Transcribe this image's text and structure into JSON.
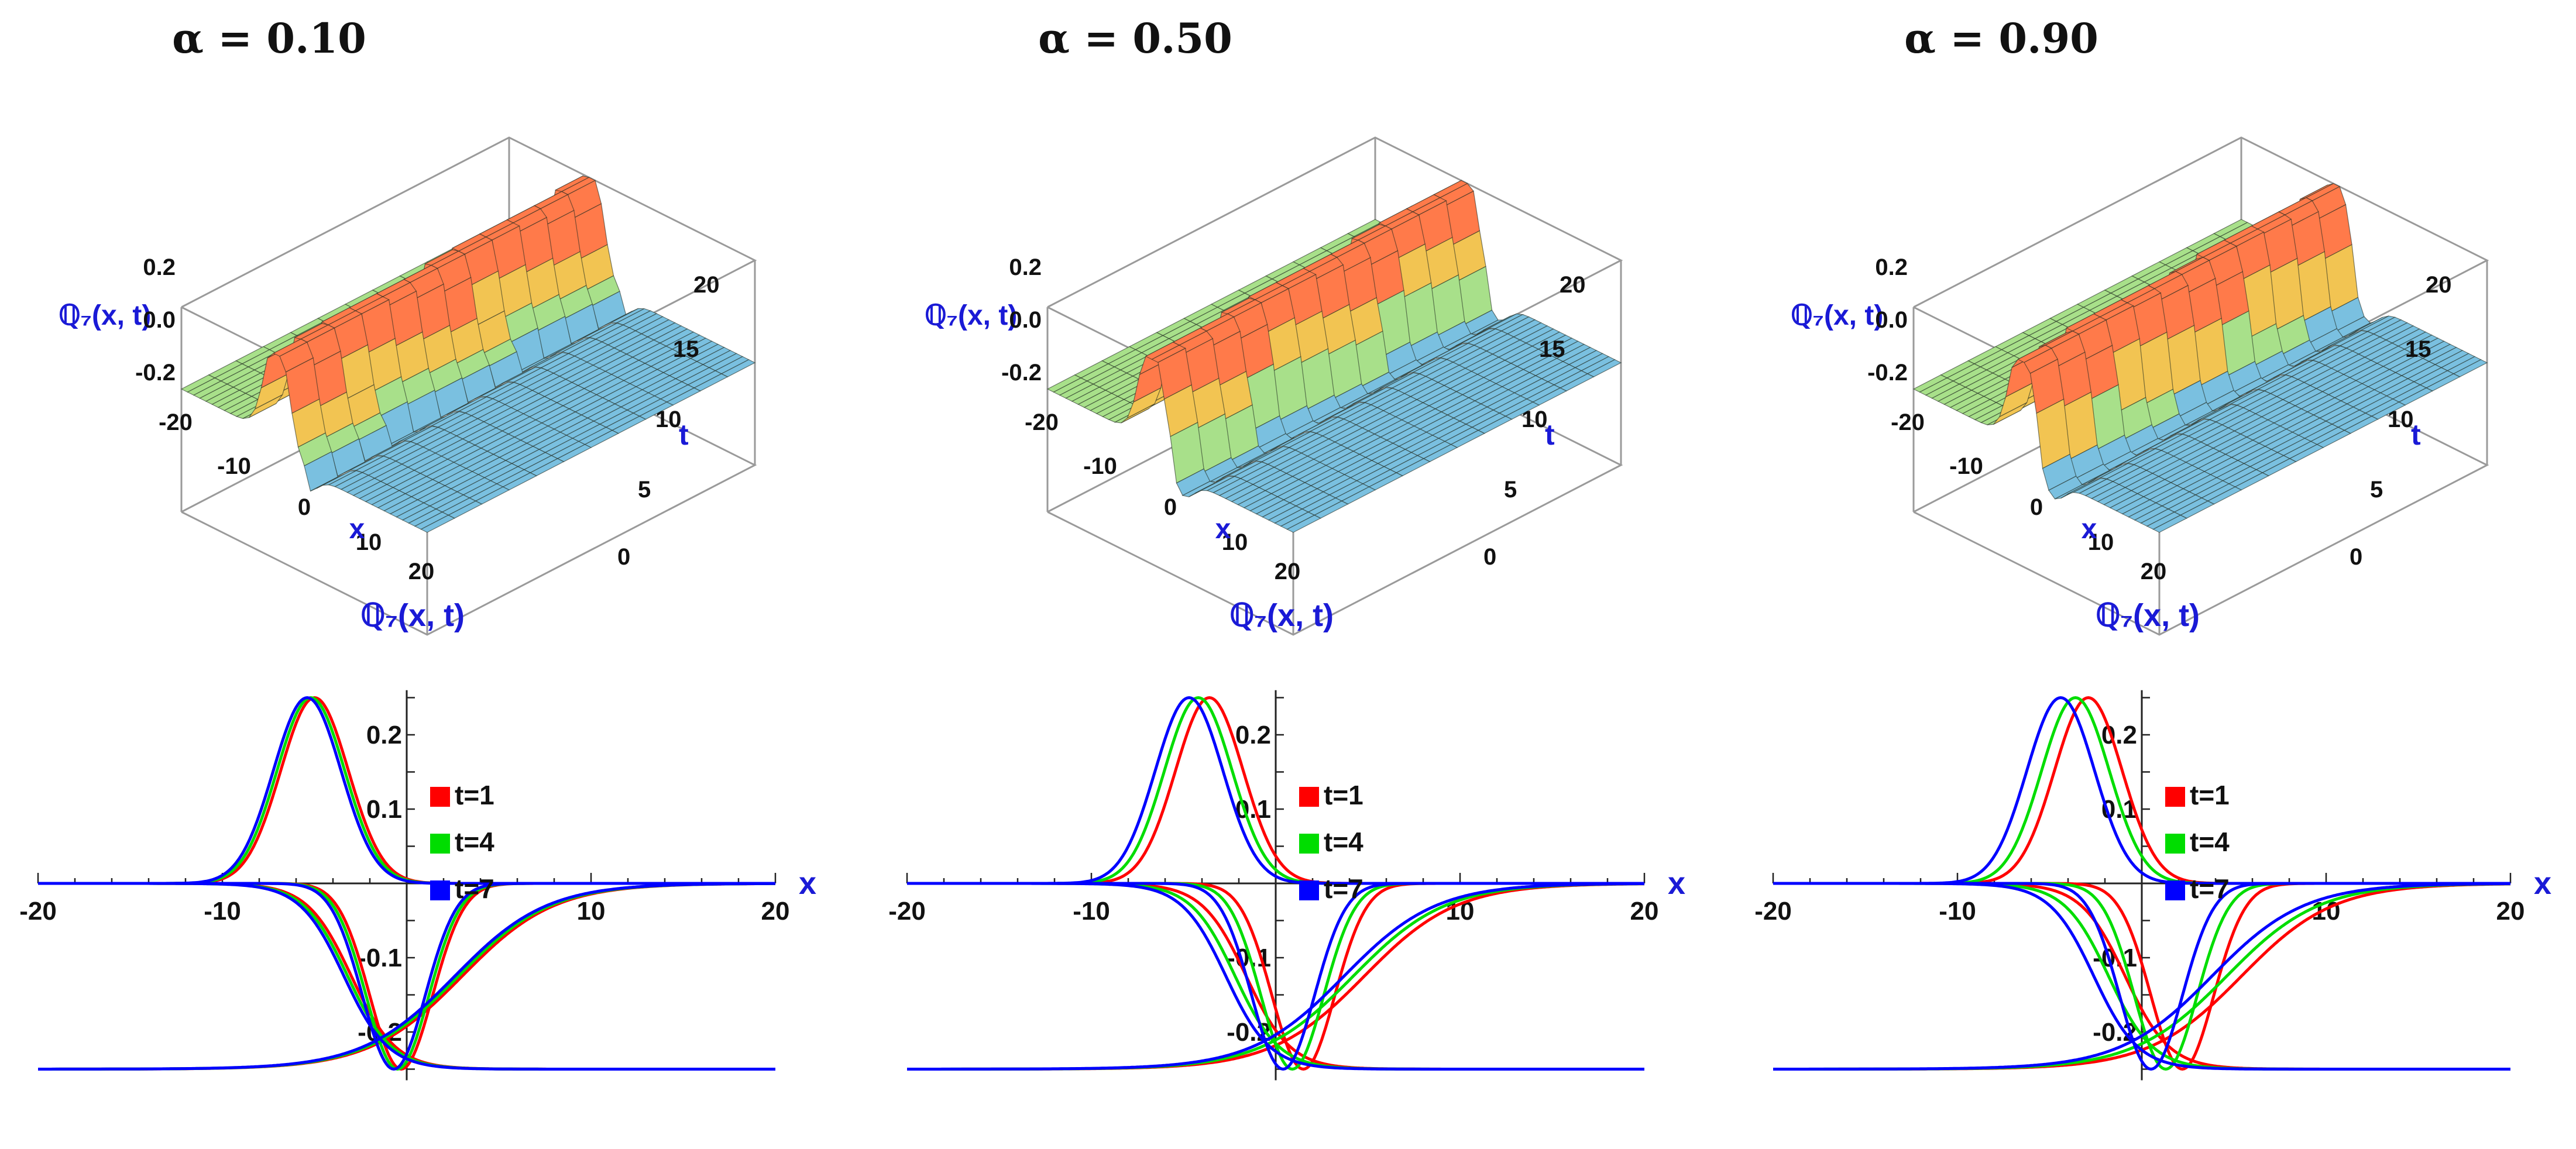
{
  "panels": [
    {
      "title": "α = 0.10",
      "surface": {
        "z_label": "ℚ₇(x, t)",
        "x_label": "x",
        "t_label": "t",
        "x_ticks": [
          "-20",
          "-10",
          "0",
          "10",
          "20"
        ],
        "t_ticks": [
          "0",
          "5",
          "10",
          "15",
          "20"
        ],
        "z_ticks": [
          "0.2",
          "0.0",
          "-0.2"
        ]
      }
    },
    {
      "title": "α = 0.50",
      "surface": {
        "z_label": "ℚ₇(x, t)",
        "x_label": "x",
        "t_label": "t",
        "x_ticks": [
          "-20",
          "-10",
          "0",
          "10",
          "20"
        ],
        "t_ticks": [
          "0",
          "5",
          "10",
          "15",
          "20"
        ],
        "z_ticks": [
          "0.2",
          "0.0",
          "-0.2"
        ]
      }
    },
    {
      "title": "α = 0.90",
      "surface": {
        "z_label": "ℚ₇(x, t)",
        "x_label": "x",
        "t_label": "t",
        "x_ticks": [
          "-20",
          "-10",
          "0",
          "10",
          "20"
        ],
        "t_ticks": [
          "0",
          "5",
          "10",
          "15",
          "20"
        ],
        "z_ticks": [
          "0.2",
          "0.0",
          "-0.2"
        ]
      }
    }
  ],
  "chart_data": [
    {
      "type": "line",
      "title": "α = 0.10",
      "xlabel": "x",
      "ylabel": "ℚ₇(x, t)",
      "xlim": [
        -20,
        20
      ],
      "ylim": [
        -0.25,
        0.25
      ],
      "x_ticks": [
        -20,
        -10,
        10,
        20
      ],
      "x_tick_labels": [
        "-20",
        "-10",
        "10",
        "20"
      ],
      "y_ticks": [
        -0.2,
        -0.1,
        0.1,
        0.2
      ],
      "y_tick_labels": [
        "-0.2",
        "-0.1",
        "0.1",
        "0.2"
      ],
      "legend": "right of y-axis",
      "series": [
        {
          "name": "t=1",
          "color": "#ff0000",
          "bump_peak_x": -5.0,
          "bump_width": 2.6,
          "bump_amp": 0.25,
          "dip_x": -0.3,
          "dip_width": 2.4,
          "dip_amp": -0.25,
          "rise_center": 3.0,
          "rise_width": 2.5,
          "fall_center": -3.0,
          "fall_width": 1.2
        },
        {
          "name": "t=4",
          "color": "#00dd00",
          "bump_peak_x": -5.2,
          "bump_width": 2.6,
          "bump_amp": 0.25,
          "dip_x": -0.5,
          "dip_width": 2.4,
          "dip_amp": -0.25,
          "rise_center": 2.8,
          "rise_width": 2.5,
          "fall_center": -3.2,
          "fall_width": 1.2
        },
        {
          "name": "t=7",
          "color": "#0000ff",
          "bump_peak_x": -5.4,
          "bump_width": 2.6,
          "bump_amp": 0.25,
          "dip_x": -0.7,
          "dip_width": 2.4,
          "dip_amp": -0.25,
          "rise_center": 2.6,
          "rise_width": 2.5,
          "fall_center": -3.4,
          "fall_width": 1.2
        }
      ]
    },
    {
      "type": "line",
      "title": "α = 0.50",
      "xlabel": "x",
      "ylabel": "ℚ₇(x, t)",
      "xlim": [
        -20,
        20
      ],
      "ylim": [
        -0.25,
        0.25
      ],
      "x_ticks": [
        -20,
        -10,
        10,
        20
      ],
      "x_tick_labels": [
        "-20",
        "-10",
        "10",
        "20"
      ],
      "y_ticks": [
        -0.2,
        -0.1,
        0.1,
        0.2
      ],
      "y_tick_labels": [
        "-0.2",
        "-0.1",
        "0.1",
        "0.2"
      ],
      "legend": "right of y-axis",
      "series": [
        {
          "name": "t=1",
          "color": "#ff0000",
          "bump_peak_x": -3.6,
          "bump_width": 2.6,
          "bump_amp": 0.25,
          "dip_x": 1.5,
          "dip_width": 2.4,
          "dip_amp": -0.25,
          "rise_center": 4.8,
          "rise_width": 2.5,
          "fall_center": -1.6,
          "fall_width": 1.2
        },
        {
          "name": "t=4",
          "color": "#00dd00",
          "bump_peak_x": -4.2,
          "bump_width": 2.6,
          "bump_amp": 0.25,
          "dip_x": 0.9,
          "dip_width": 2.4,
          "dip_amp": -0.25,
          "rise_center": 4.2,
          "rise_width": 2.5,
          "fall_center": -2.2,
          "fall_width": 1.2
        },
        {
          "name": "t=7",
          "color": "#0000ff",
          "bump_peak_x": -4.7,
          "bump_width": 2.6,
          "bump_amp": 0.25,
          "dip_x": 0.4,
          "dip_width": 2.4,
          "dip_amp": -0.25,
          "rise_center": 3.7,
          "rise_width": 2.5,
          "fall_center": -2.7,
          "fall_width": 1.2
        }
      ]
    },
    {
      "type": "line",
      "title": "α = 0.90",
      "xlabel": "x",
      "ylabel": "ℚ₇(x, t)",
      "xlim": [
        -20,
        20
      ],
      "ylim": [
        -0.25,
        0.25
      ],
      "x_ticks": [
        -20,
        -10,
        10,
        20
      ],
      "x_tick_labels": [
        "-20",
        "-10",
        "10",
        "20"
      ],
      "y_ticks": [
        -0.2,
        -0.1,
        0.1,
        0.2
      ],
      "y_tick_labels": [
        "-0.2",
        "-0.1",
        "0.1",
        "0.2"
      ],
      "legend": "right of y-axis",
      "series": [
        {
          "name": "t=1",
          "color": "#ff0000",
          "bump_peak_x": -2.9,
          "bump_width": 2.6,
          "bump_amp": 0.25,
          "dip_x": 2.2,
          "dip_width": 2.4,
          "dip_amp": -0.25,
          "rise_center": 5.4,
          "rise_width": 2.5,
          "fall_center": -0.9,
          "fall_width": 1.2
        },
        {
          "name": "t=4",
          "color": "#00dd00",
          "bump_peak_x": -3.6,
          "bump_width": 2.6,
          "bump_amp": 0.25,
          "dip_x": 1.3,
          "dip_width": 2.4,
          "dip_amp": -0.25,
          "rise_center": 4.6,
          "rise_width": 2.5,
          "fall_center": -1.8,
          "fall_width": 1.2
        },
        {
          "name": "t=7",
          "color": "#0000ff",
          "bump_peak_x": -4.4,
          "bump_width": 2.6,
          "bump_amp": 0.25,
          "dip_x": 0.5,
          "dip_width": 2.4,
          "dip_amp": -0.25,
          "rise_center": 3.8,
          "rise_width": 2.5,
          "fall_center": -2.6,
          "fall_width": 1.2
        }
      ]
    }
  ]
}
